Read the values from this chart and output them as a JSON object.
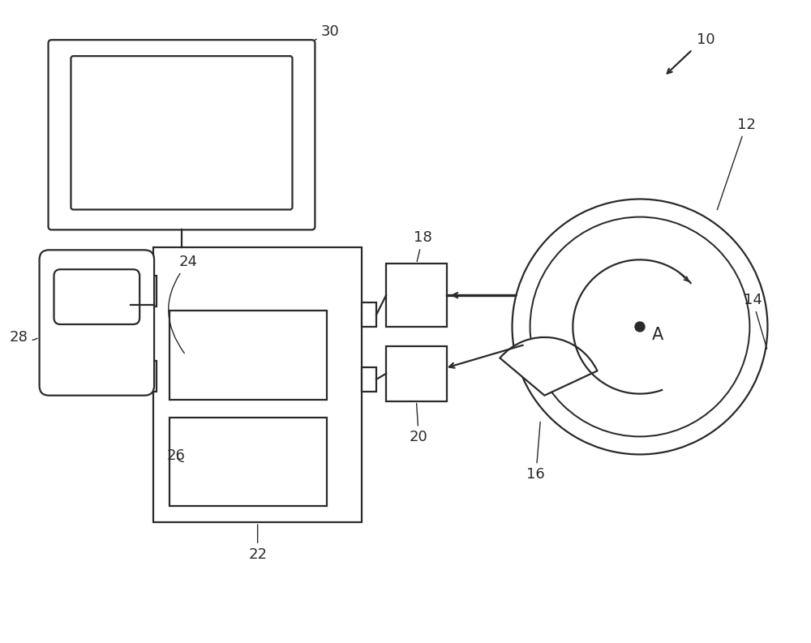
{
  "bg_color": "#ffffff",
  "line_color": "#2a2a2a",
  "line_width": 1.6,
  "fig_width": 10.0,
  "fig_height": 7.93,
  "dpi": 100
}
